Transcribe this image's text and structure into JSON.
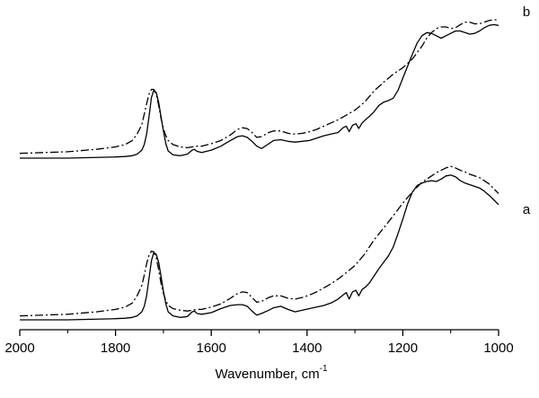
{
  "chart_data": {
    "type": "line",
    "title": "",
    "xlabel": "Wavenumber, cm",
    "xlabel_superscript": "-1",
    "ylabel": "",
    "xlim": [
      2000,
      1000
    ],
    "x_reversed": true,
    "x_ticks": [
      2000,
      1800,
      1600,
      1400,
      1200,
      1000
    ],
    "grid": false,
    "y_axis_shown": false,
    "panels": [
      {
        "label": "b",
        "series": [
          {
            "line_style": "solid",
            "color": "#000000",
            "x": [
              2000,
              1900,
              1800,
              1780,
              1765,
              1755,
              1745,
              1740,
              1735,
              1730,
              1725,
              1720,
              1715,
              1710,
              1705,
              1700,
              1695,
              1690,
              1680,
              1665,
              1650,
              1640,
              1635,
              1630,
              1620,
              1600,
              1580,
              1560,
              1545,
              1535,
              1525,
              1515,
              1505,
              1495,
              1480,
              1470,
              1455,
              1440,
              1425,
              1410,
              1395,
              1380,
              1365,
              1350,
              1335,
              1325,
              1318,
              1312,
              1305,
              1298,
              1292,
              1285,
              1278,
              1270,
              1260,
              1250,
              1240,
              1230,
              1220,
              1210,
              1200,
              1190,
              1180,
              1170,
              1160,
              1150,
              1140,
              1130,
              1120,
              1110,
              1100,
              1090,
              1080,
              1070,
              1060,
              1050,
              1040,
              1030,
              1020,
              1010,
              1000
            ],
            "y": [
              0.0,
              0.0,
              0.015,
              0.02,
              0.03,
              0.05,
              0.1,
              0.17,
              0.3,
              0.52,
              0.76,
              0.85,
              0.82,
              0.7,
              0.52,
              0.34,
              0.18,
              0.09,
              0.04,
              0.03,
              0.05,
              0.1,
              0.11,
              0.085,
              0.07,
              0.1,
              0.15,
              0.22,
              0.27,
              0.28,
              0.26,
              0.21,
              0.15,
              0.12,
              0.18,
              0.22,
              0.23,
              0.21,
              0.2,
              0.21,
              0.22,
              0.25,
              0.28,
              0.3,
              0.32,
              0.38,
              0.4,
              0.33,
              0.41,
              0.43,
              0.37,
              0.44,
              0.48,
              0.52,
              0.58,
              0.66,
              0.7,
              0.72,
              0.75,
              0.85,
              1.0,
              1.15,
              1.3,
              1.44,
              1.53,
              1.57,
              1.56,
              1.53,
              1.5,
              1.53,
              1.56,
              1.59,
              1.59,
              1.57,
              1.55,
              1.56,
              1.59,
              1.63,
              1.66,
              1.67,
              1.66
            ]
          },
          {
            "line_style": "dash-dot",
            "color": "#000000",
            "x": [
              2000,
              1900,
              1840,
              1800,
              1780,
              1765,
              1755,
              1745,
              1740,
              1735,
              1730,
              1725,
              1720,
              1715,
              1710,
              1705,
              1700,
              1695,
              1690,
              1680,
              1665,
              1650,
              1640,
              1630,
              1620,
              1600,
              1580,
              1560,
              1545,
              1535,
              1525,
              1515,
              1505,
              1495,
              1480,
              1470,
              1455,
              1440,
              1425,
              1410,
              1395,
              1380,
              1365,
              1350,
              1335,
              1320,
              1300,
              1280,
              1260,
              1240,
              1220,
              1200,
              1180,
              1160,
              1150,
              1140,
              1130,
              1120,
              1110,
              1100,
              1090,
              1080,
              1070,
              1060,
              1050,
              1040,
              1030,
              1020,
              1010,
              1000
            ],
            "y": [
              0.06,
              0.08,
              0.11,
              0.14,
              0.17,
              0.22,
              0.3,
              0.42,
              0.55,
              0.68,
              0.8,
              0.86,
              0.86,
              0.8,
              0.66,
              0.5,
              0.37,
              0.28,
              0.22,
              0.17,
              0.14,
              0.13,
              0.14,
              0.15,
              0.15,
              0.18,
              0.22,
              0.29,
              0.36,
              0.38,
              0.37,
              0.32,
              0.26,
              0.27,
              0.32,
              0.34,
              0.34,
              0.31,
              0.3,
              0.31,
              0.33,
              0.36,
              0.4,
              0.44,
              0.48,
              0.53,
              0.6,
              0.7,
              0.84,
              0.95,
              1.05,
              1.13,
              1.24,
              1.4,
              1.5,
              1.57,
              1.62,
              1.64,
              1.64,
              1.62,
              1.63,
              1.67,
              1.7,
              1.7,
              1.68,
              1.68,
              1.7,
              1.72,
              1.73,
              1.73
            ]
          }
        ]
      },
      {
        "label": "a",
        "series": [
          {
            "line_style": "solid",
            "color": "#000000",
            "x": [
              2000,
              1900,
              1800,
              1780,
              1765,
              1755,
              1745,
              1740,
              1735,
              1730,
              1725,
              1720,
              1715,
              1710,
              1705,
              1700,
              1695,
              1690,
              1680,
              1665,
              1650,
              1640,
              1635,
              1630,
              1620,
              1600,
              1580,
              1560,
              1545,
              1535,
              1525,
              1515,
              1505,
              1495,
              1480,
              1470,
              1455,
              1440,
              1425,
              1410,
              1395,
              1380,
              1365,
              1350,
              1335,
              1325,
              1318,
              1312,
              1305,
              1298,
              1292,
              1285,
              1278,
              1270,
              1260,
              1250,
              1240,
              1230,
              1220,
              1210,
              1200,
              1190,
              1180,
              1170,
              1160,
              1150,
              1140,
              1130,
              1120,
              1110,
              1100,
              1090,
              1080,
              1070,
              1060,
              1050,
              1040,
              1030,
              1020,
              1010,
              1000
            ],
            "y": [
              0.0,
              0.0,
              0.015,
              0.02,
              0.03,
              0.05,
              0.1,
              0.17,
              0.3,
              0.52,
              0.74,
              0.84,
              0.82,
              0.72,
              0.55,
              0.36,
              0.2,
              0.1,
              0.05,
              0.03,
              0.04,
              0.1,
              0.11,
              0.08,
              0.07,
              0.09,
              0.14,
              0.18,
              0.19,
              0.19,
              0.17,
              0.11,
              0.06,
              0.08,
              0.12,
              0.15,
              0.17,
              0.13,
              0.1,
              0.12,
              0.14,
              0.16,
              0.18,
              0.21,
              0.26,
              0.31,
              0.34,
              0.26,
              0.35,
              0.37,
              0.3,
              0.38,
              0.41,
              0.46,
              0.55,
              0.64,
              0.72,
              0.8,
              0.91,
              1.08,
              1.26,
              1.45,
              1.6,
              1.68,
              1.71,
              1.73,
              1.74,
              1.73,
              1.76,
              1.8,
              1.81,
              1.79,
              1.74,
              1.71,
              1.69,
              1.67,
              1.65,
              1.61,
              1.56,
              1.5,
              1.44
            ]
          },
          {
            "line_style": "dash-dot",
            "color": "#000000",
            "x": [
              2000,
              1900,
              1840,
              1800,
              1780,
              1765,
              1755,
              1745,
              1740,
              1735,
              1730,
              1725,
              1720,
              1715,
              1710,
              1705,
              1700,
              1695,
              1690,
              1680,
              1665,
              1650,
              1640,
              1630,
              1620,
              1600,
              1580,
              1560,
              1545,
              1535,
              1525,
              1515,
              1505,
              1495,
              1480,
              1470,
              1455,
              1440,
              1425,
              1410,
              1395,
              1380,
              1365,
              1350,
              1335,
              1320,
              1300,
              1280,
              1260,
              1240,
              1220,
              1200,
              1180,
              1160,
              1150,
              1140,
              1130,
              1120,
              1110,
              1100,
              1090,
              1080,
              1070,
              1060,
              1050,
              1040,
              1030,
              1020,
              1010,
              1000
            ],
            "y": [
              0.05,
              0.07,
              0.1,
              0.13,
              0.16,
              0.21,
              0.3,
              0.43,
              0.56,
              0.7,
              0.81,
              0.86,
              0.85,
              0.78,
              0.63,
              0.46,
              0.33,
              0.24,
              0.18,
              0.14,
              0.12,
              0.11,
              0.12,
              0.13,
              0.13,
              0.16,
              0.2,
              0.27,
              0.33,
              0.35,
              0.34,
              0.28,
              0.22,
              0.23,
              0.28,
              0.3,
              0.3,
              0.27,
              0.26,
              0.28,
              0.31,
              0.35,
              0.4,
              0.45,
              0.51,
              0.58,
              0.68,
              0.82,
              1.0,
              1.15,
              1.3,
              1.46,
              1.6,
              1.72,
              1.76,
              1.8,
              1.84,
              1.87,
              1.9,
              1.92,
              1.9,
              1.87,
              1.85,
              1.82,
              1.8,
              1.78,
              1.74,
              1.7,
              1.64,
              1.58
            ]
          }
        ]
      }
    ]
  }
}
